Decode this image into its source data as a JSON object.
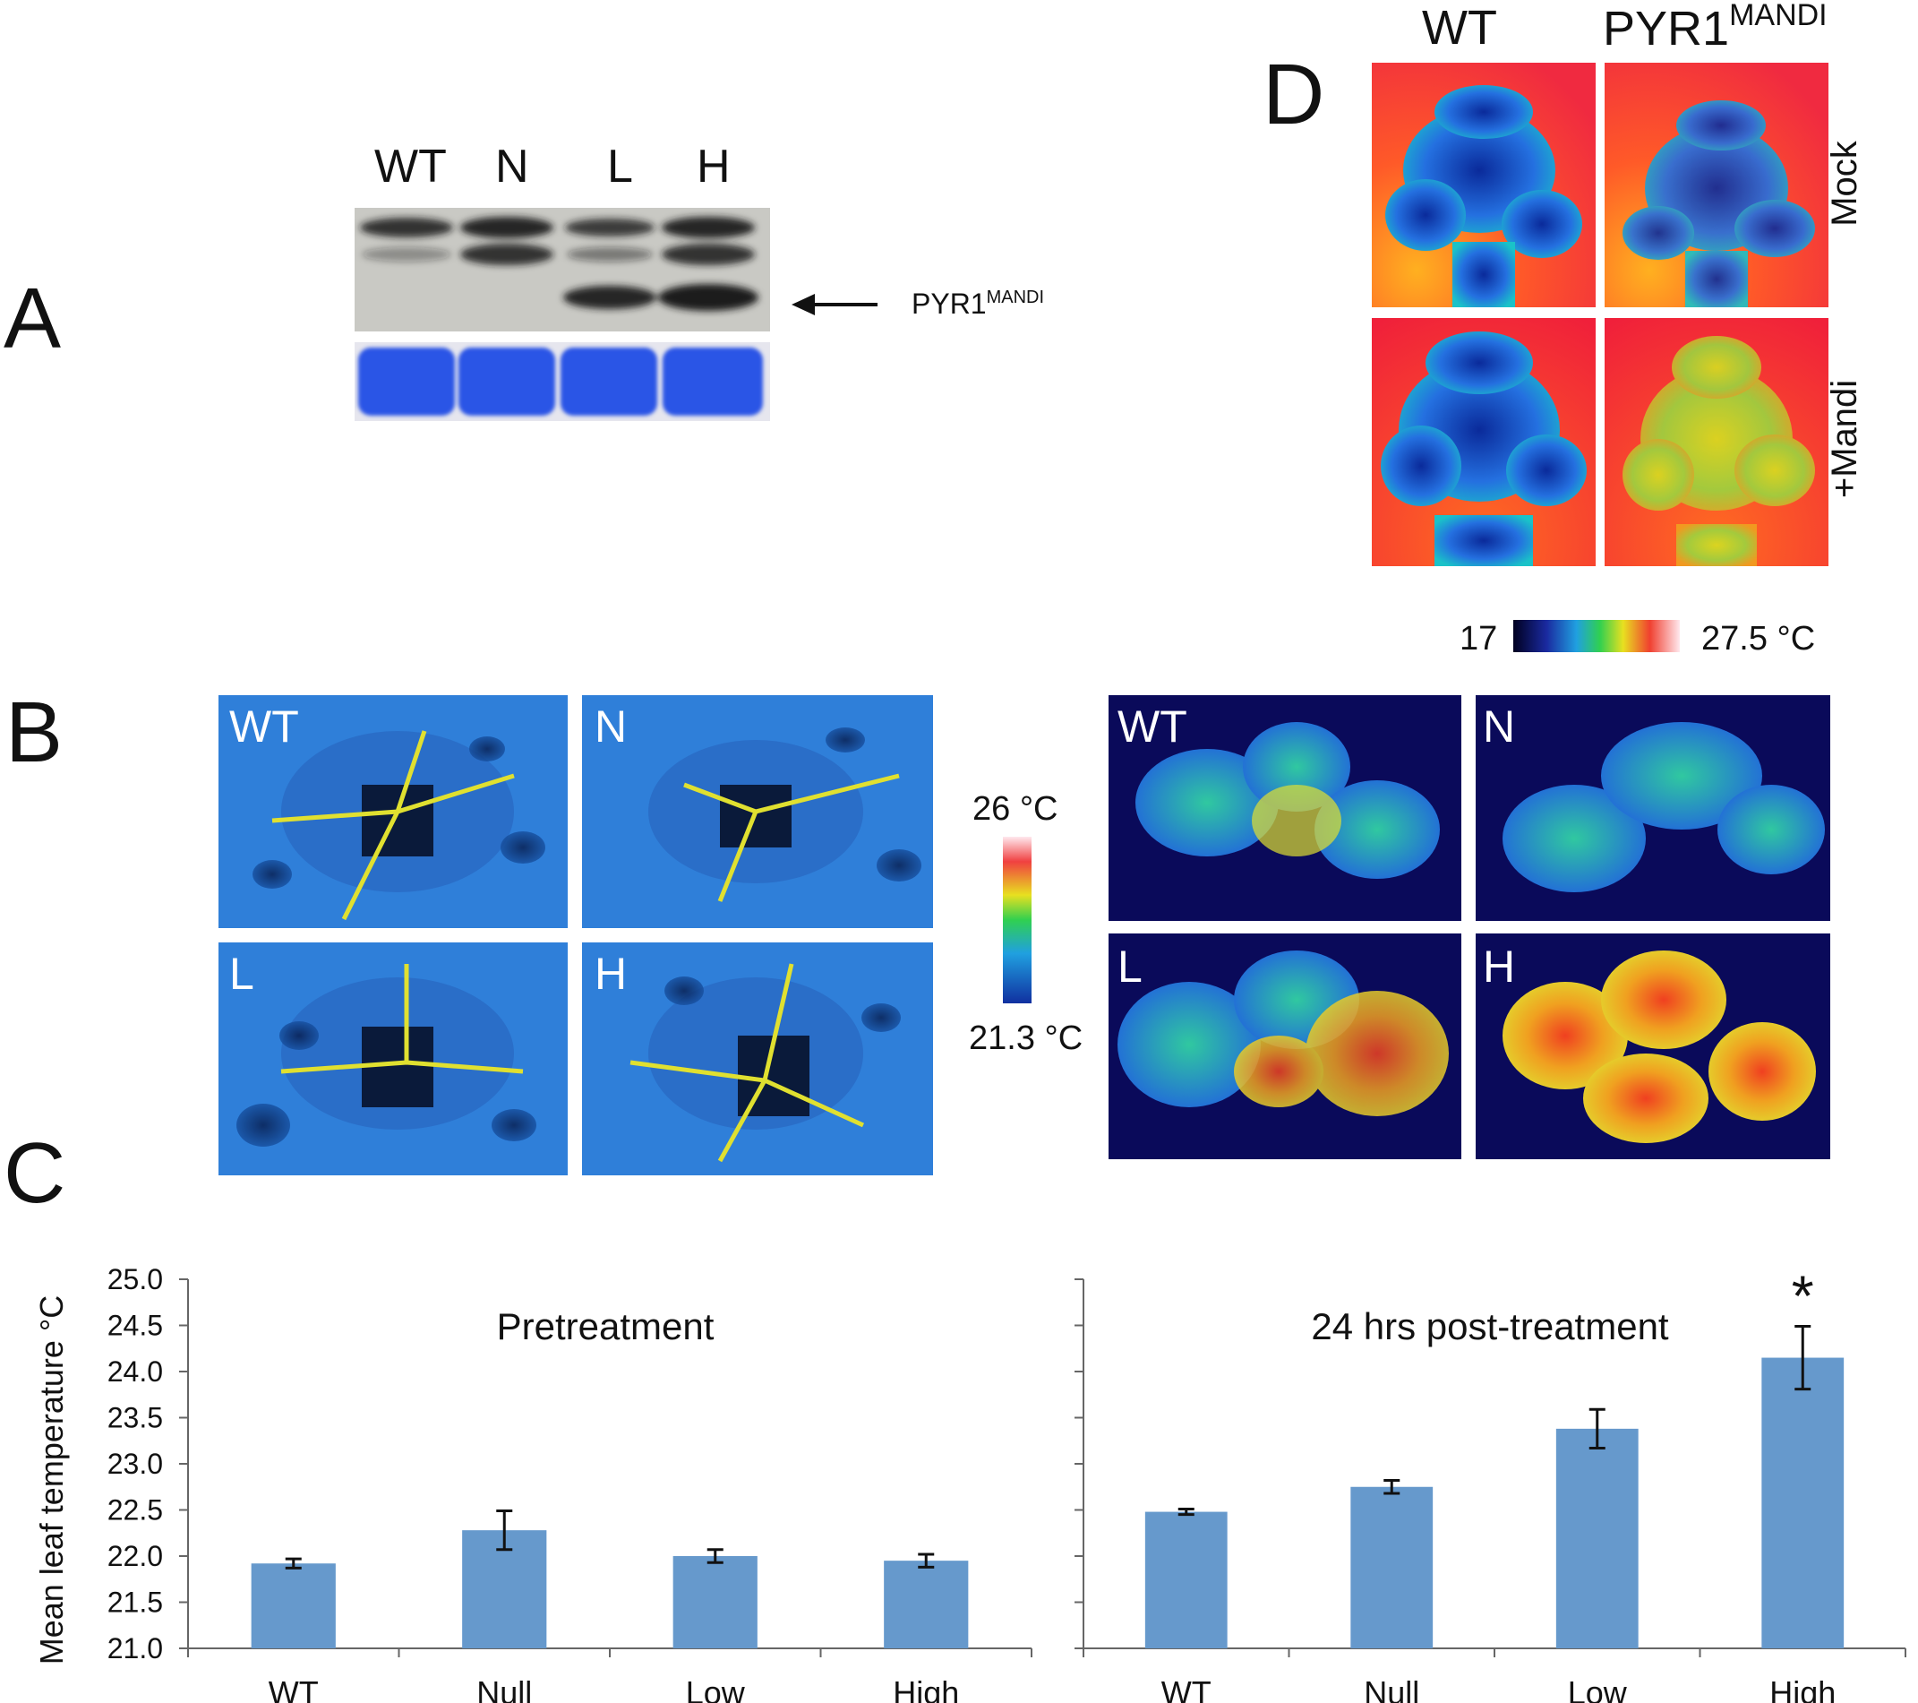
{
  "panels": {
    "A": "A",
    "B": "B",
    "C": "C",
    "D": "D"
  },
  "blot": {
    "lanes": [
      "WT",
      "N",
      "L",
      "H"
    ],
    "arrow_label": "PYR1",
    "arrow_label_sup": "MANDI"
  },
  "panelD": {
    "col_wt": "WT",
    "col_pyr": "PYR1",
    "col_pyr_sup": "MANDI",
    "row_mock": "Mock",
    "row_mandi": "+Mandi",
    "scale_min": "17",
    "scale_max": "27.5 °C"
  },
  "panelB": {
    "left_tiles": [
      "WT",
      "N",
      "L",
      "H"
    ],
    "right_tiles": [
      "WT",
      "N",
      "L",
      "H"
    ],
    "scale_max": "26 °C",
    "scale_min": "21.3 °C"
  },
  "colors": {
    "bar": "#6699cc",
    "blue_bg": "#2f7fd9",
    "navy_bg": "#0a0a5a",
    "blot_stain": "#2a55e6"
  },
  "chart_data": [
    {
      "type": "bar",
      "title": "Pretreatment",
      "ylabel": "Mean leaf temperature °C",
      "categories": [
        "WT",
        "Null",
        "Low",
        "High"
      ],
      "values": [
        21.92,
        22.28,
        22.0,
        21.95
      ],
      "errors": [
        0.05,
        0.21,
        0.07,
        0.07
      ],
      "ylim": [
        21.0,
        25.0
      ],
      "yticks": [
        "21.0",
        "21.5",
        "22.0",
        "22.5",
        "23.0",
        "23.5",
        "24.0",
        "24.5",
        "25.0"
      ],
      "annotations": []
    },
    {
      "type": "bar",
      "title": "24 hrs  post-treatment",
      "ylabel": "",
      "categories": [
        "WT",
        "Null",
        "Low",
        "High"
      ],
      "values": [
        22.48,
        22.75,
        23.38,
        24.15
      ],
      "errors": [
        0.03,
        0.07,
        0.21,
        0.34
      ],
      "ylim": [
        21.0,
        25.0
      ],
      "annotations": [
        "*"
      ]
    }
  ]
}
